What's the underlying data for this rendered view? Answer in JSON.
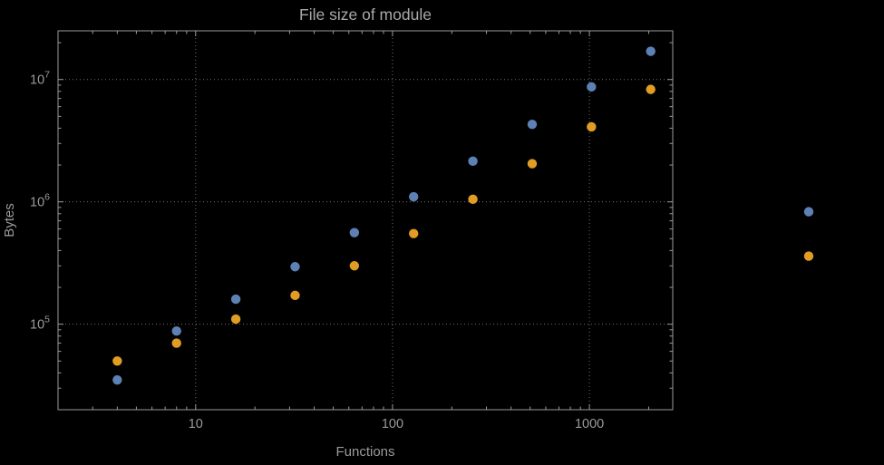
{
  "page": {
    "background": "#000000"
  },
  "chart_data": {
    "type": "scatter",
    "title": "File size of module",
    "xlabel": "Functions",
    "ylabel": "Bytes",
    "x_scale": "log",
    "y_scale": "log",
    "xlim": [
      2.0,
      2650
    ],
    "ylim": [
      20000,
      25000000
    ],
    "x_ticks": [
      10,
      100,
      1000
    ],
    "y_ticks": [
      100000,
      1000000,
      10000000
    ],
    "grid": "dotted",
    "legend": "none",
    "plot_range_clipping": false,
    "frame_color": "#9a9a9a",
    "grid_color": "#6f6f6f",
    "text_color": "#9a9a9a",
    "title_color": "#a8a8a8",
    "series": [
      {
        "name": "series-blue",
        "color": "#5e81b5",
        "points": [
          [
            4,
            35000
          ],
          [
            8,
            88000
          ],
          [
            16,
            160000
          ],
          [
            32,
            295000
          ],
          [
            64,
            560000
          ],
          [
            128,
            1100000
          ],
          [
            256,
            2150000
          ],
          [
            512,
            4300000
          ],
          [
            1024,
            8700000
          ],
          [
            2048,
            17000000
          ],
          [
            13000,
            830000
          ]
        ]
      },
      {
        "name": "series-orange",
        "color": "#e19c24",
        "points": [
          [
            4,
            50000
          ],
          [
            8,
            70000
          ],
          [
            16,
            110000
          ],
          [
            32,
            172000
          ],
          [
            64,
            300000
          ],
          [
            128,
            550000
          ],
          [
            256,
            1050000
          ],
          [
            512,
            2050000
          ],
          [
            1024,
            4100000
          ],
          [
            2048,
            8300000
          ],
          [
            13000,
            360000
          ]
        ]
      }
    ]
  }
}
